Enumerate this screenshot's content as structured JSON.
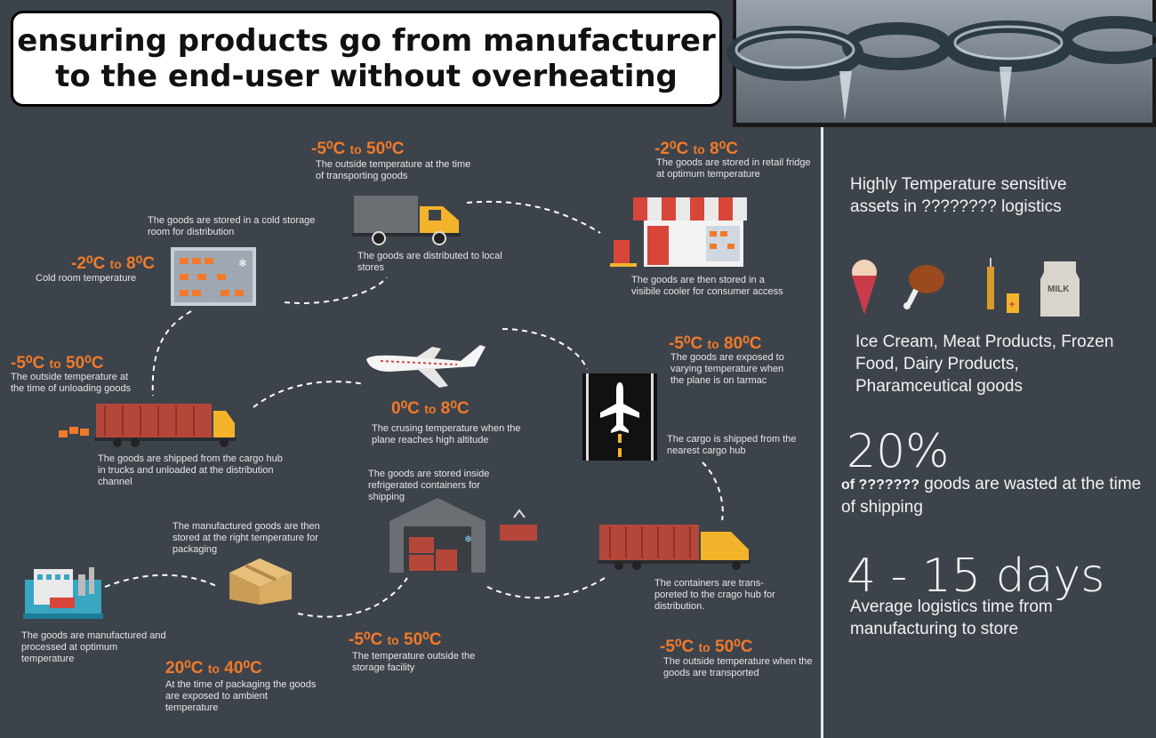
{
  "title": {
    "line1": "ensuring products go from manufacturer",
    "line2": "to the end-user without overheating"
  },
  "steps": {
    "transport_local": {
      "temp": "-5⁰C to 50⁰C",
      "text1": "The outside temperature at the time of transporting goods",
      "text2": "The goods are distributed to local stores"
    },
    "retail": {
      "temp": "-2⁰C to 8⁰C",
      "text1": "The goods are stored in retail fridge at optimum temperature",
      "text2": "The goods are then stored in a visibile cooler for consumer access"
    },
    "cold_room": {
      "temp": "-2⁰C to 8⁰C",
      "text1": "The goods are stored in a cold storage room for distribution",
      "text2": "Cold room temperature"
    },
    "unloading": {
      "temp": "-5⁰C to 50⁰C",
      "text1": "The outside temperature at the time of unloading goods",
      "text2": "The goods are shipped from the cargo hub in trucks and unloaded at the distribution channel"
    },
    "flight": {
      "temp": "0⁰C to 8⁰C",
      "text1": "The crusing temperature when the plane reaches high altitude"
    },
    "tarmac": {
      "temp": "-5⁰C to 80⁰C",
      "text1": "The goods are exposed to varying temperature when the plane is on tarmac",
      "text2": "The cargo is shipped from the nearest cargo hub"
    },
    "shipping_containers": {
      "text1": "The goods are stored inside refrigerated containers for shipping"
    },
    "packaging": {
      "text1": "The manufactured goods are then stored at the right temperature for packaging",
      "temp": "20⁰C to 40⁰C",
      "text2": "At the time of packaging the goods are exposed to ambient temperature"
    },
    "manufacture": {
      "text1": "The goods are manufactured and processed at optimum temperature"
    },
    "storage": {
      "temp": "-5⁰C to 50⁰C",
      "text1": "The temperature outside the storage facility"
    },
    "cargo_hub": {
      "text1": "The containers are trans-poreted to the crago hub for distribution.",
      "temp": "-5⁰C to 50⁰C",
      "text2": "The outside temperature when the goods are transported"
    }
  },
  "sidebar": {
    "heading": "Highly Temperature sensitive assets in  ????????  logistics",
    "milk_label": "MILK",
    "products": "Ice Cream, Meat Products, Frozen Food, Dairy Products, Pharamceutical goods",
    "stat1_value": "20%",
    "stat1_prefix": "of ???????",
    "stat1_text": " goods are wasted at the time of shipping",
    "stat2_value": "4 - 15 days",
    "stat2_text": "Average logistics time from manufacturing to store"
  },
  "colors": {
    "background": "#3d434b",
    "accent": "#f07a2a",
    "truck_yellow": "#f3b32b",
    "container_red": "#b5473a"
  }
}
